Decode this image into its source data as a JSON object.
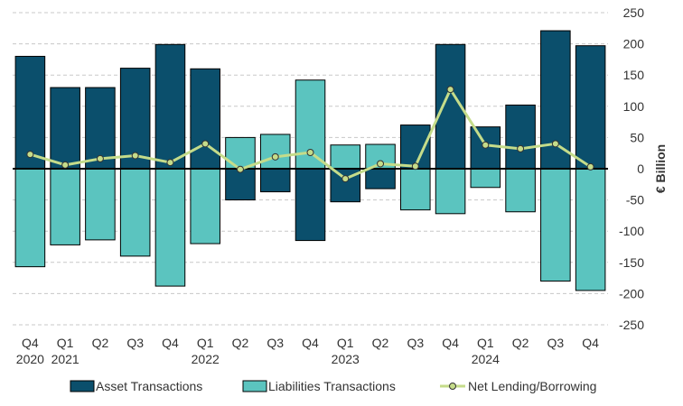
{
  "chart_data": {
    "type": "bar",
    "title": "",
    "ylabel": "€ Billion",
    "ylim": [
      -250,
      250
    ],
    "yticks": [
      250,
      200,
      150,
      100,
      50,
      0,
      -50,
      -100,
      -150,
      -200,
      -250
    ],
    "categories": [
      "Q4",
      "Q1",
      "Q2",
      "Q3",
      "Q4",
      "Q1",
      "Q2",
      "Q3",
      "Q4",
      "Q1",
      "Q2",
      "Q3",
      "Q4",
      "Q1",
      "Q2",
      "Q3",
      "Q4"
    ],
    "years": [
      "2020",
      "2021",
      "",
      "",
      "",
      "2022",
      "",
      "",
      "",
      "2023",
      "",
      "",
      "",
      "2024",
      "",
      "",
      ""
    ],
    "series": [
      {
        "name": "Asset Transactions",
        "kind": "bar",
        "color": "#0b4f6c",
        "values": [
          180,
          130,
          130,
          161,
          199,
          160,
          -50,
          -37,
          -115,
          -53,
          -32,
          70,
          199,
          67,
          102,
          221,
          197
        ]
      },
      {
        "name": "Liabilities Transactions",
        "kind": "bar",
        "color": "#5bc4bf",
        "values": [
          -157,
          -122,
          -114,
          -140,
          -188,
          -120,
          50,
          55,
          142,
          38,
          39,
          -66,
          -72,
          -30,
          -69,
          -180,
          -195
        ]
      },
      {
        "name": "Net Lending/Borrowing",
        "kind": "line",
        "color": "#c5dc8a",
        "values": [
          23,
          6,
          16,
          21,
          10,
          40,
          -1,
          19,
          26,
          -16,
          8,
          4,
          127,
          38,
          32,
          40,
          3
        ]
      }
    ],
    "legend": [
      "Asset Transactions",
      "Liabilities Transactions",
      "Net Lending/Borrowing"
    ],
    "legend_position": "bottom"
  }
}
